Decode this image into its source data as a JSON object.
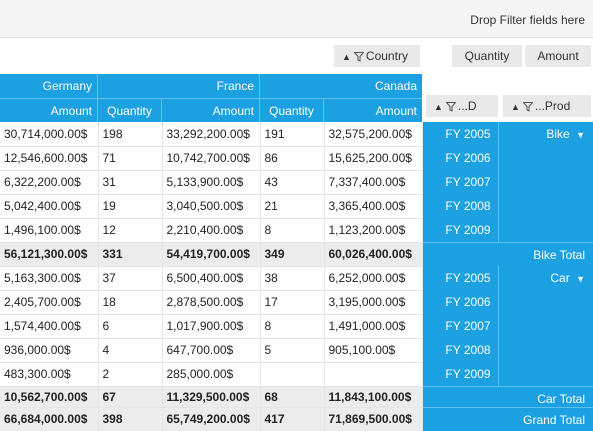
{
  "filter_area": {
    "hint": "Drop Filter fields here"
  },
  "column_field": {
    "label": "Country"
  },
  "value_fields": [
    "Quantity",
    "Amount"
  ],
  "row_fields": [
    {
      "label": "...D"
    },
    {
      "label": "...Prod"
    }
  ],
  "countries": {
    "germany": "Germany",
    "france": "France",
    "canada": "Canada"
  },
  "measures": {
    "amount": "Amount",
    "quantity": "Quantity"
  },
  "row_headers": {
    "bike": "Bike",
    "car": "Car",
    "bike_total": "Bike Total",
    "car_total": "Car Total",
    "grand_total": "Grand Total",
    "years": [
      "FY 2005",
      "FY 2006",
      "FY 2007",
      "FY 2008",
      "FY 2009"
    ]
  },
  "rows": [
    [
      "30,714,000.00$",
      "198",
      "33,292,200.00$",
      "191",
      "32,575,200.00$"
    ],
    [
      "12,546,600.00$",
      "71",
      "10,742,700.00$",
      "86",
      "15,625,200.00$"
    ],
    [
      "6,322,200.00$",
      "31",
      "5,133,900.00$",
      "43",
      "7,337,400.00$"
    ],
    [
      "5,042,400.00$",
      "19",
      "3,040,500.00$",
      "21",
      "3,365,400.00$"
    ],
    [
      "1,496,100.00$",
      "12",
      "2,210,400.00$",
      "8",
      "1,123,200.00$"
    ],
    [
      "56,121,300.00$",
      "331",
      "54,419,700.00$",
      "349",
      "60,026,400.00$"
    ],
    [
      "5,163,300.00$",
      "37",
      "6,500,400.00$",
      "38",
      "6,252,000.00$"
    ],
    [
      "2,405,700.00$",
      "18",
      "2,878,500.00$",
      "17",
      "3,195,000.00$"
    ],
    [
      "1,574,400.00$",
      "6",
      "1,017,900.00$",
      "8",
      "1,491,000.00$"
    ],
    [
      "936,000.00$",
      "4",
      "647,700.00$",
      "5",
      "905,100.00$"
    ],
    [
      "483,300.00$",
      "2",
      "285,000.00$",
      "",
      ""
    ],
    [
      "10,562,700.00$",
      "67",
      "11,329,500.00$",
      "68",
      "11,843,100.00$"
    ],
    [
      "66,684,000.00$",
      "398",
      "65,749,200.00$",
      "417",
      "71,869,500.00$"
    ]
  ]
}
